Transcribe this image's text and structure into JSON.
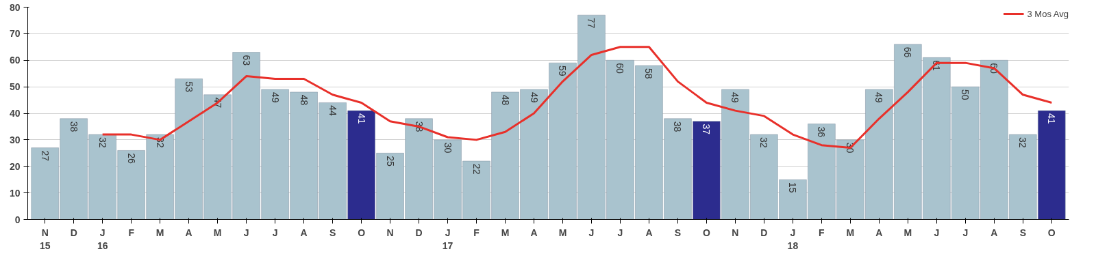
{
  "chart_data": {
    "type": "bar",
    "categories": [
      "N\n15",
      "D",
      "J\n16",
      "F",
      "M",
      "A",
      "M",
      "J",
      "J",
      "A",
      "S",
      "O",
      "N",
      "D",
      "J\n17",
      "F",
      "M",
      "A",
      "M",
      "J",
      "J",
      "A",
      "S",
      "O",
      "N",
      "D",
      "J\n18",
      "F",
      "M",
      "A",
      "M",
      "J",
      "J",
      "A",
      "S",
      "O"
    ],
    "series": [
      {
        "values": [
          27,
          38,
          32,
          26,
          32,
          53,
          47,
          63,
          49,
          48,
          44,
          41,
          25,
          38,
          30,
          22,
          48,
          49,
          59,
          77,
          60,
          58,
          38,
          37,
          49,
          32,
          15,
          36,
          30,
          49,
          66,
          61,
          50,
          60,
          32,
          41
        ],
        "value_labels": [
          "27",
          "38",
          "32",
          "26",
          "32",
          "53",
          "47",
          "63",
          "49",
          "48",
          "44",
          "41",
          "25",
          "38",
          "30",
          "22",
          "48",
          "49",
          "59",
          "77",
          "60",
          "58",
          "38",
          "37",
          "49",
          "32",
          "15",
          "36",
          "30",
          "49",
          "66",
          "61",
          "50",
          "60",
          "32",
          "41"
        ],
        "colors": [
          "#a9c3ce",
          "#a9c3ce",
          "#a9c3ce",
          "#a9c3ce",
          "#a9c3ce",
          "#a9c3ce",
          "#a9c3ce",
          "#a9c3ce",
          "#a9c3ce",
          "#a9c3ce",
          "#a9c3ce",
          "#2c2c8e",
          "#a9c3ce",
          "#a9c3ce",
          "#a9c3ce",
          "#a9c3ce",
          "#a9c3ce",
          "#a9c3ce",
          "#a9c3ce",
          "#a9c3ce",
          "#a9c3ce",
          "#a9c3ce",
          "#a9c3ce",
          "#2c2c8e",
          "#a9c3ce",
          "#a9c3ce",
          "#a9c3ce",
          "#a9c3ce",
          "#a9c3ce",
          "#a9c3ce",
          "#a9c3ce",
          "#a9c3ce",
          "#a9c3ce",
          "#a9c3ce",
          "#a9c3ce",
          "#2c2c8e"
        ]
      },
      {
        "type": "line",
        "name": "3 Mos Avg",
        "color": "#e8302a",
        "values": [
          null,
          null,
          32,
          32,
          30,
          37,
          44,
          54,
          53,
          53,
          47,
          44,
          37,
          35,
          31,
          30,
          33,
          40,
          52,
          62,
          65,
          65,
          52,
          44,
          41,
          39,
          32,
          28,
          27,
          38,
          48,
          59,
          59,
          57,
          47,
          44
        ]
      }
    ],
    "ylim": [
      0,
      80
    ],
    "yticks": [
      0,
      10,
      20,
      30,
      40,
      50,
      60,
      70,
      80
    ],
    "grid": "y",
    "legend": "top right"
  }
}
